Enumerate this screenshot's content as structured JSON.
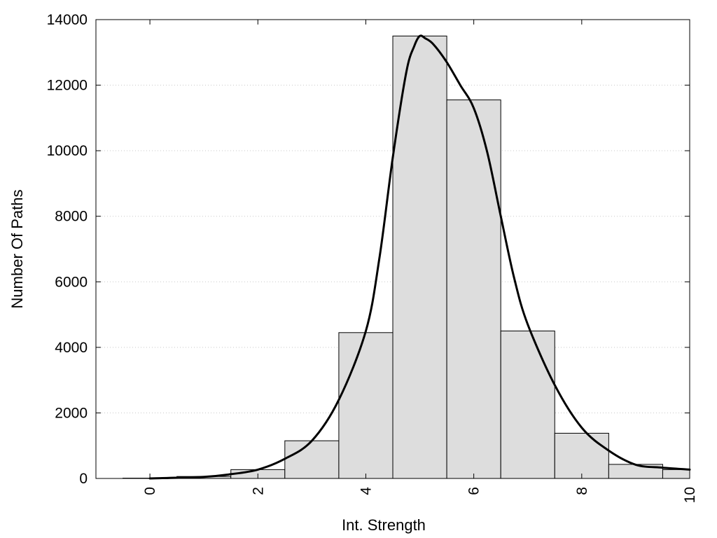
{
  "chart_data": {
    "type": "bar",
    "xlabel": "Int. Strength",
    "ylabel": "Number Of Paths",
    "xlim": [
      -1,
      10
    ],
    "ylim": [
      0,
      14000
    ],
    "x_ticks": [
      0,
      2,
      4,
      6,
      8,
      10
    ],
    "y_ticks": [
      0,
      2000,
      4000,
      6000,
      8000,
      10000,
      12000,
      14000
    ],
    "grid": "horizontal dotted",
    "bar_color": "#dddddd",
    "bins": [
      {
        "x": 0,
        "value": 10
      },
      {
        "x": 1,
        "value": 60
      },
      {
        "x": 2,
        "value": 270
      },
      {
        "x": 3,
        "value": 1150
      },
      {
        "x": 4,
        "value": 4450
      },
      {
        "x": 5,
        "value": 13500
      },
      {
        "x": 6,
        "value": 11550
      },
      {
        "x": 7,
        "value": 4500
      },
      {
        "x": 8,
        "value": 1380
      },
      {
        "x": 9,
        "value": 430
      },
      {
        "x": 10,
        "value": 270
      }
    ],
    "curve": {
      "x": [
        0,
        1,
        1.5,
        2,
        2.5,
        3,
        3.5,
        4,
        4.25,
        4.5,
        4.75,
        4.9,
        5,
        5.1,
        5.25,
        5.5,
        5.75,
        6,
        6.25,
        6.5,
        6.75,
        7,
        7.5,
        8,
        8.5,
        9,
        9.5,
        10
      ],
      "y": [
        0,
        50,
        130,
        270,
        600,
        1150,
        2400,
        4500,
        6700,
        9800,
        12400,
        13200,
        13500,
        13430,
        13250,
        12700,
        12000,
        11300,
        9950,
        8000,
        6100,
        4700,
        2850,
        1550,
        850,
        420,
        330,
        270
      ]
    }
  }
}
